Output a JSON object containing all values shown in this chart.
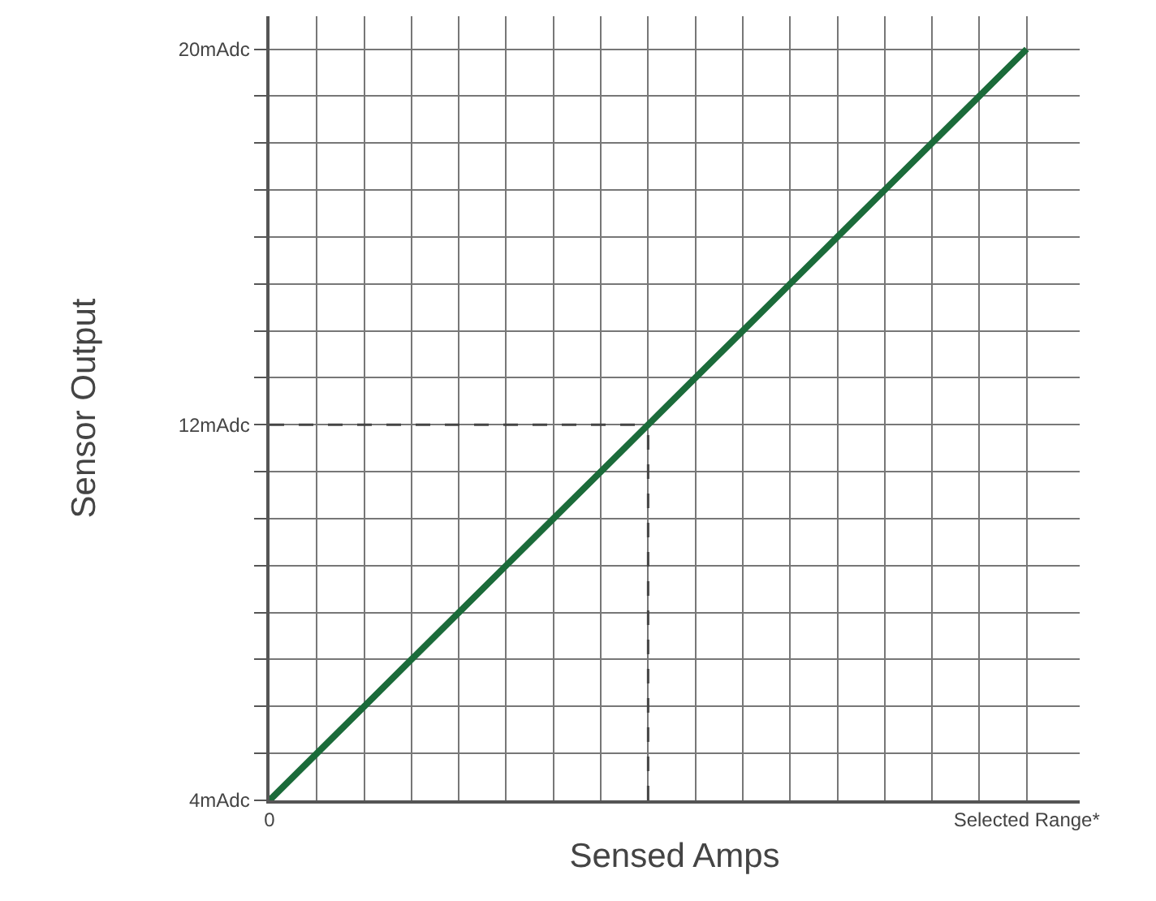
{
  "chart_data": {
    "type": "line",
    "xlabel": "Sensed Amps",
    "ylabel": "Sensor Output",
    "categories": [
      "0",
      null,
      null,
      null,
      null,
      null,
      null,
      null,
      null,
      null,
      null,
      null,
      null,
      null,
      null,
      null,
      "Selected Range*"
    ],
    "series": [
      {
        "color": "#1b6b3a",
        "values": [
          4,
          5,
          6,
          7,
          8,
          9,
          10,
          11,
          12,
          13,
          14,
          15,
          16,
          17,
          18,
          19,
          20
        ],
        "line_style": "solid"
      },
      {
        "color": "#444444",
        "values": [
          12,
          12,
          12,
          12,
          12,
          12,
          12,
          12,
          12,
          null,
          null,
          null,
          null,
          null,
          null,
          null,
          null
        ],
        "errors": [
          null,
          null,
          null,
          null,
          null,
          null,
          null,
          null,
          [
            4,
            12
          ],
          null,
          null,
          null,
          null,
          null,
          null,
          null,
          null
        ],
        "line_style": "dashed"
      }
    ],
    "ylim": [
      4,
      20.7
    ],
    "yticks": [
      {
        "value": 4,
        "label": "4mAdc"
      },
      {
        "value": 5,
        "label": null
      },
      {
        "value": 6,
        "label": null
      },
      {
        "value": 7,
        "label": null
      },
      {
        "value": 8,
        "label": null
      },
      {
        "value": 9,
        "label": null
      },
      {
        "value": 10,
        "label": null
      },
      {
        "value": 11,
        "label": null
      },
      {
        "value": 12,
        "label": "12mAdc"
      },
      {
        "value": 13,
        "label": null
      },
      {
        "value": 14,
        "label": null
      },
      {
        "value": 15,
        "label": null
      },
      {
        "value": 16,
        "label": null
      },
      {
        "value": 17,
        "label": null
      },
      {
        "value": 18,
        "label": null
      },
      {
        "value": 19,
        "label": null
      },
      {
        "value": 20,
        "label": "20mAdc"
      }
    ],
    "grid": true,
    "marker": "none"
  }
}
